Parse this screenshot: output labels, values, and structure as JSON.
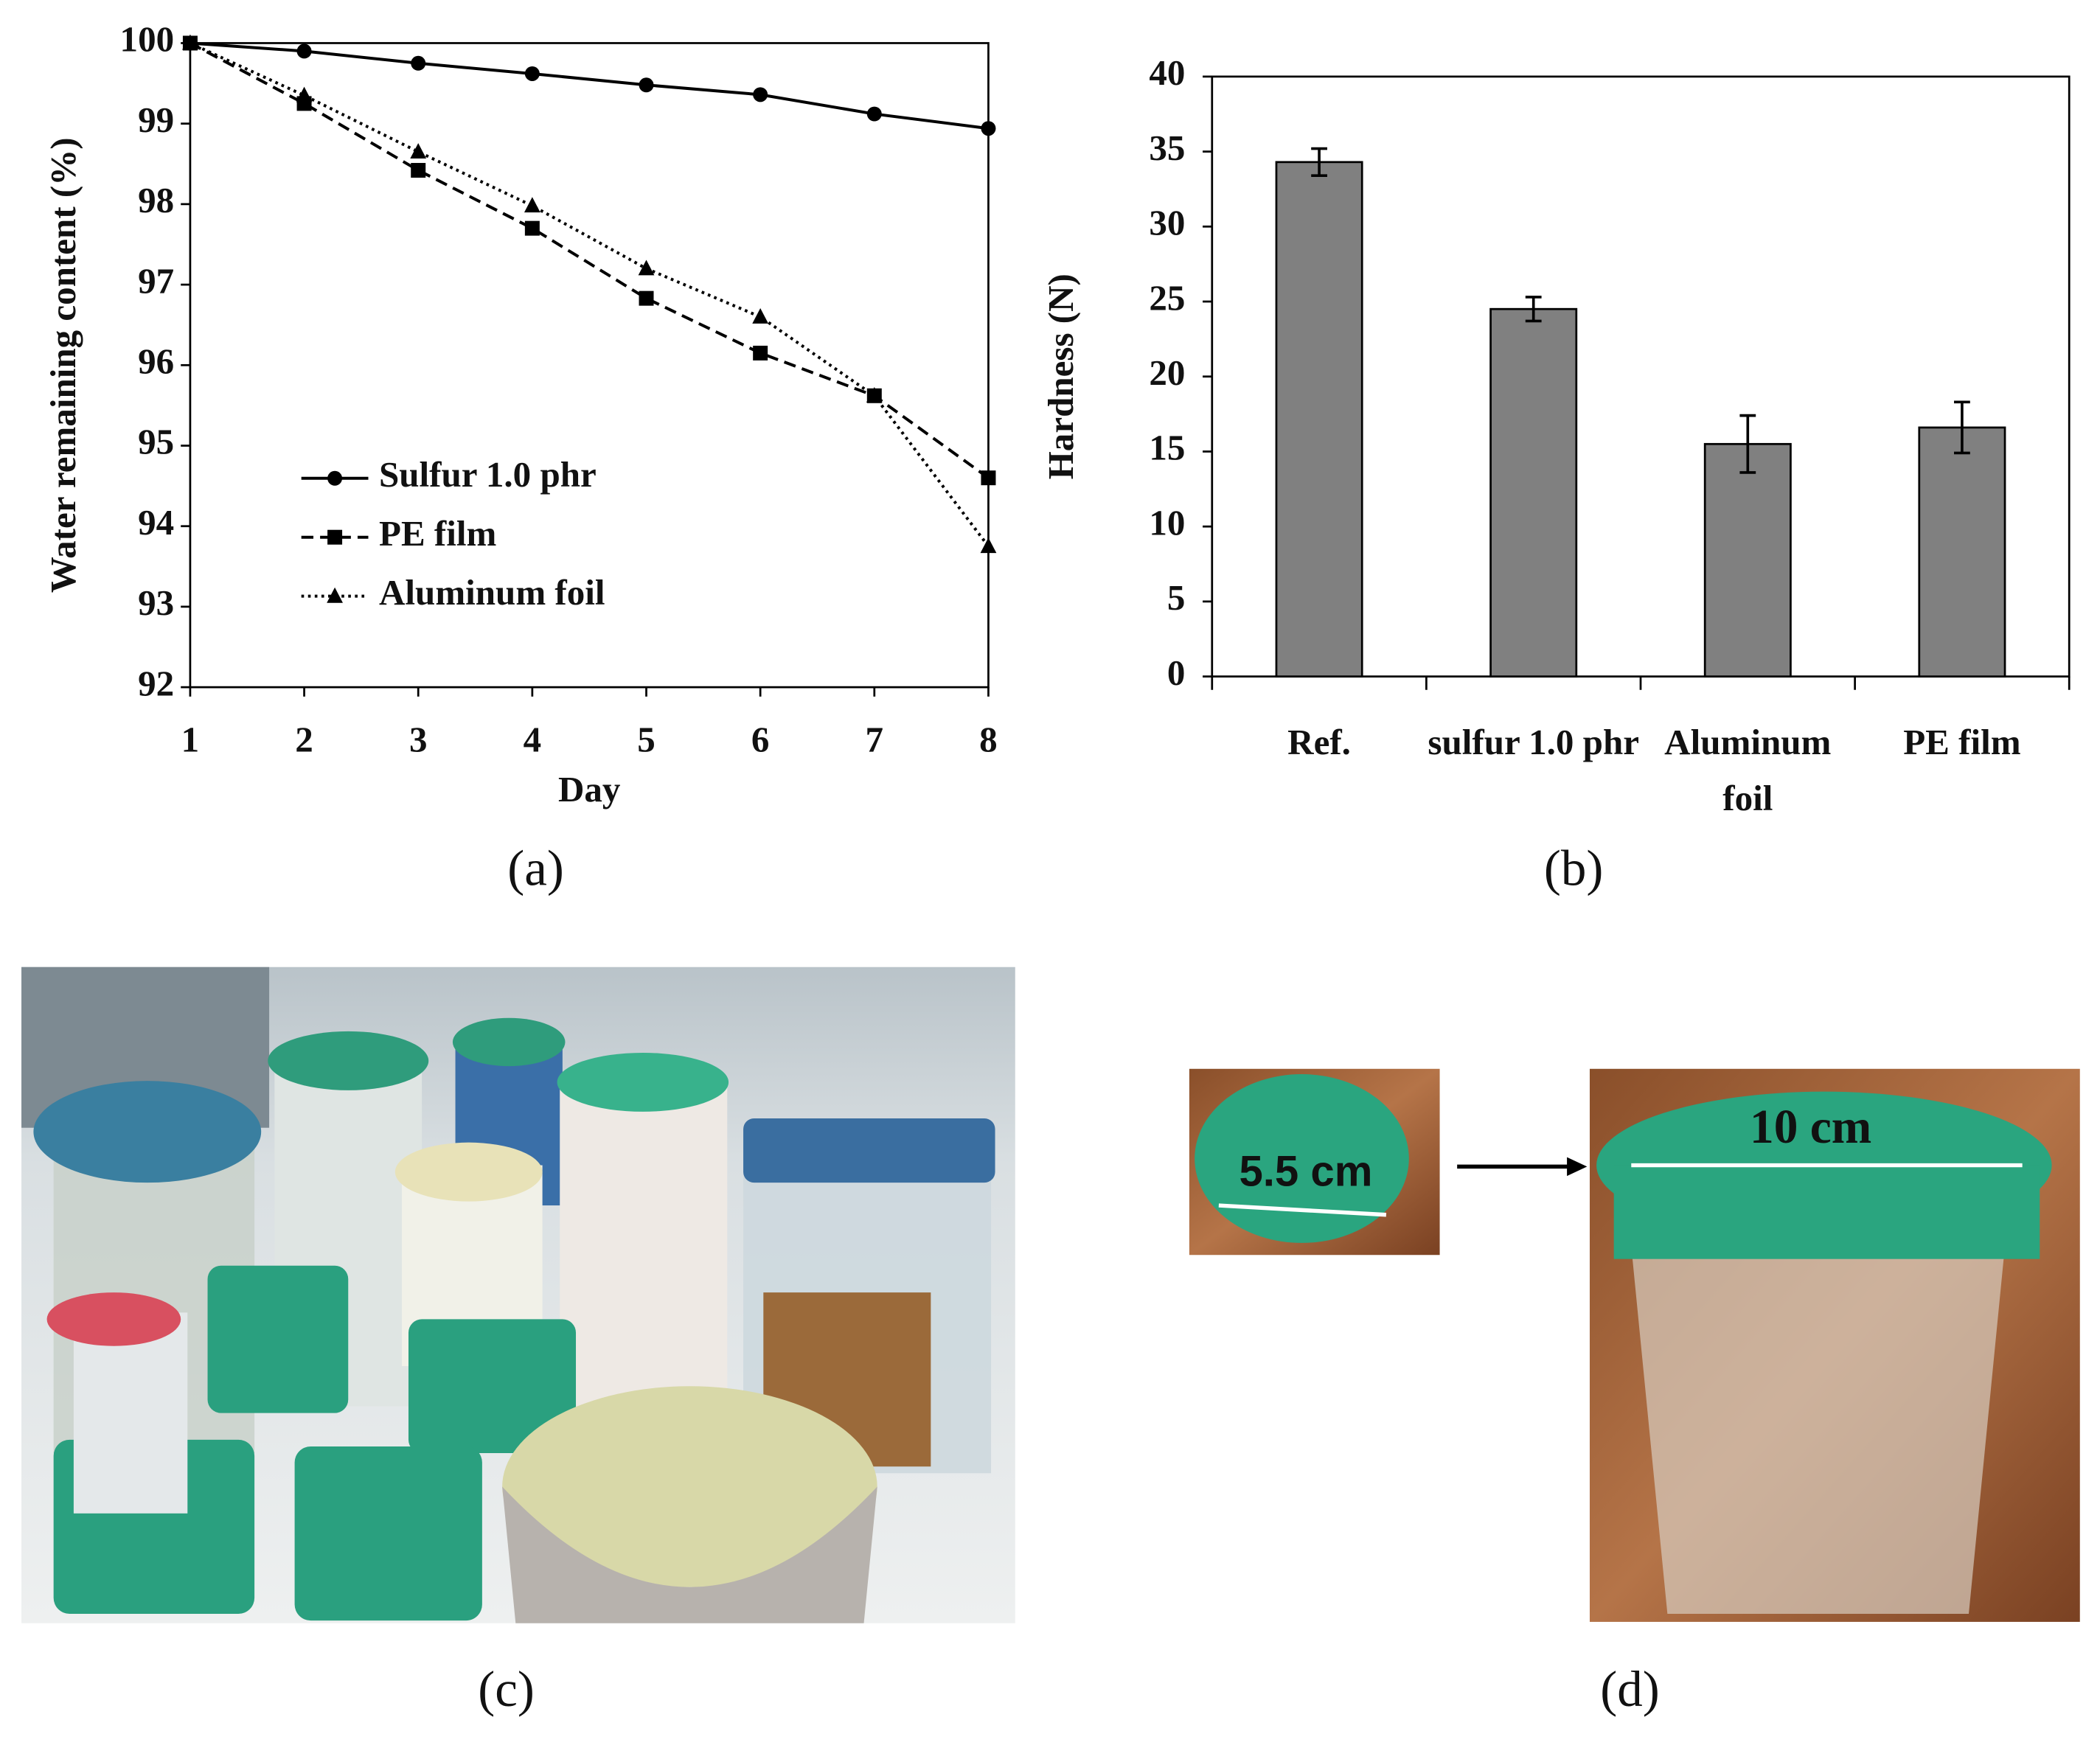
{
  "chart_data": [
    {
      "type": "line",
      "caption": "(a)",
      "x_label": "Day",
      "y_label": "Water remaining content (%)",
      "x": [
        1,
        2,
        3,
        4,
        5,
        6,
        7,
        8
      ],
      "xlim": [
        1,
        8
      ],
      "xticks": [
        1,
        2,
        3,
        4,
        5,
        6,
        7,
        8
      ],
      "ylim": [
        92,
        100
      ],
      "yticks": [
        92,
        93,
        94,
        95,
        96,
        97,
        98,
        99,
        100
      ],
      "grid": false,
      "legend": "lower left",
      "series": [
        {
          "name": "Sulfur 1.0 phr",
          "color": "#000000",
          "style": "solid",
          "marker": "circle",
          "values": [
            100,
            99.9,
            99.75,
            99.62,
            99.48,
            99.36,
            99.12,
            98.94
          ]
        },
        {
          "name": "PE  film",
          "color": "#000000",
          "style": "dashed",
          "marker": "square",
          "values": [
            100,
            99.25,
            98.42,
            97.7,
            96.83,
            96.15,
            95.62,
            94.6
          ]
        },
        {
          "name": "Aluminum foil",
          "color": "#000000",
          "style": "dotted",
          "marker": "triangle",
          "values": [
            100,
            99.35,
            98.65,
            97.98,
            97.2,
            96.6,
            95.62,
            93.75
          ]
        }
      ]
    },
    {
      "type": "bar",
      "caption": "(b)",
      "y_label": "Hardness (N)",
      "categories": [
        "Ref.",
        "sulfur 1.0 phr",
        "Aluminum foil",
        "PE  film"
      ],
      "values": [
        34.3,
        24.5,
        15.5,
        16.6
      ],
      "errors": [
        0.9,
        0.8,
        1.9,
        1.7
      ],
      "color": "#808080",
      "ylim": [
        0,
        40
      ],
      "yticks": [
        0,
        5,
        10,
        15,
        20,
        25,
        30,
        35,
        40
      ],
      "grid": false
    }
  ],
  "photos": [
    {
      "caption": "(c)"
    },
    {
      "caption": "(d)",
      "annotations": [
        "5.5 cm",
        "10 cm"
      ]
    }
  ]
}
